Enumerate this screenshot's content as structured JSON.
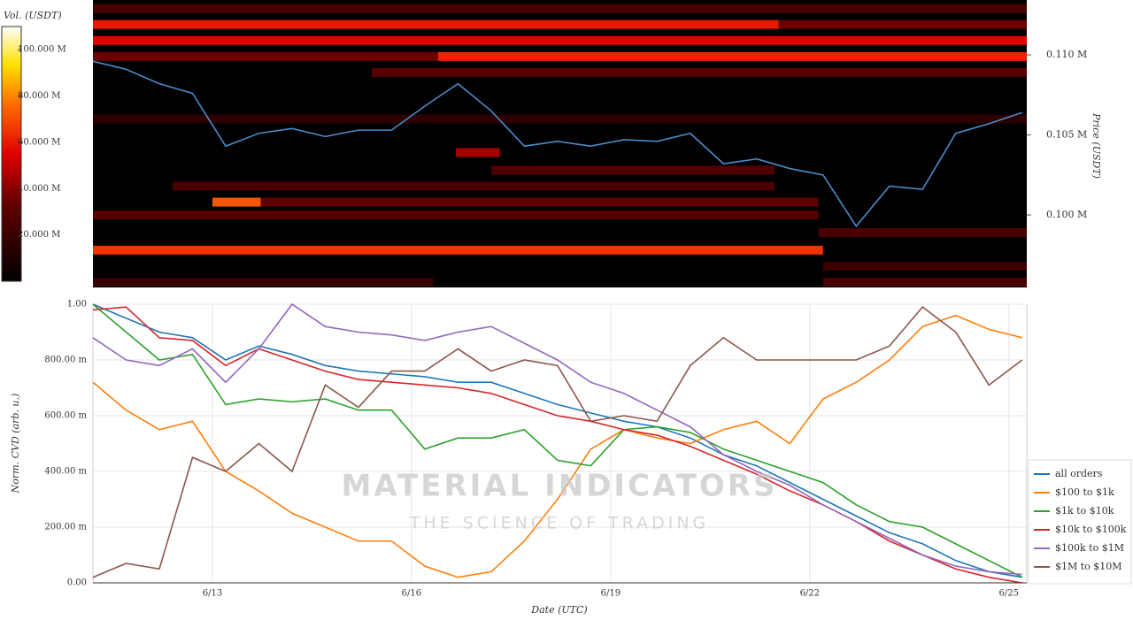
{
  "chart_data": [
    {
      "type": "heatmap",
      "colorbar_title": "Vol. (USDT)",
      "clim": [
        0,
        110
      ],
      "cticks": [
        {
          "value": 20,
          "label": "20.000 M"
        },
        {
          "value": 40,
          "label": "40.000 M"
        },
        {
          "value": 60,
          "label": "60.000 M"
        },
        {
          "value": 80,
          "label": "80.000 M"
        },
        {
          "value": 100,
          "label": "100.000 M"
        }
      ],
      "y_label": "Price (USDT)",
      "ylim": [
        0.09547,
        0.11343
      ],
      "yticks": [
        {
          "value": 0.1,
          "label": "0.100 M"
        },
        {
          "value": 0.105,
          "label": "0.105 M"
        },
        {
          "value": 0.11,
          "label": "0.110 M"
        }
      ],
      "xlim": [
        11.2,
        25.27
      ],
      "bands": [
        {
          "price": 0.1129,
          "start": 11.2,
          "end": 25.27,
          "volume": 25
        },
        {
          "price": 0.1119,
          "start": 11.2,
          "end": 21.53,
          "volume": 60
        },
        {
          "price": 0.1119,
          "start": 21.53,
          "end": 25.27,
          "volume": 35
        },
        {
          "price": 0.1109,
          "start": 11.2,
          "end": 25.27,
          "volume": 55
        },
        {
          "price": 0.1099,
          "start": 11.2,
          "end": 16.4,
          "volume": 35
        },
        {
          "price": 0.1099,
          "start": 16.4,
          "end": 25.27,
          "volume": 62
        },
        {
          "price": 0.1089,
          "start": 15.4,
          "end": 25.27,
          "volume": 30
        },
        {
          "price": 0.106,
          "start": 11.2,
          "end": 25.27,
          "volume": 15
        },
        {
          "price": 0.1039,
          "start": 16.67,
          "end": 17.33,
          "volume": 45
        },
        {
          "price": 0.1028,
          "start": 17.2,
          "end": 21.47,
          "volume": 28
        },
        {
          "price": 0.1018,
          "start": 12.4,
          "end": 21.47,
          "volume": 25
        },
        {
          "price": 0.1008,
          "start": 13.0,
          "end": 13.73,
          "volume": 72
        },
        {
          "price": 0.1008,
          "start": 13.73,
          "end": 22.13,
          "volume": 32
        },
        {
          "price": 0.1,
          "start": 11.2,
          "end": 22.13,
          "volume": 30
        },
        {
          "price": 0.0989,
          "start": 22.13,
          "end": 25.27,
          "volume": 25
        },
        {
          "price": 0.0978,
          "start": 11.2,
          "end": 22.2,
          "volume": 65
        },
        {
          "price": 0.0968,
          "start": 22.2,
          "end": 25.27,
          "volume": 20
        },
        {
          "price": 0.0958,
          "start": 11.2,
          "end": 16.33,
          "volume": 18
        },
        {
          "price": 0.0958,
          "start": 22.2,
          "end": 25.27,
          "volume": 25
        }
      ],
      "price_color": "#4a8ccb",
      "x": [
        11.2,
        11.7,
        12.2,
        12.7,
        13.2,
        13.7,
        14.2,
        14.7,
        15.2,
        15.7,
        16.2,
        16.7,
        17.2,
        17.7,
        18.2,
        18.7,
        19.2,
        19.7,
        20.2,
        20.7,
        21.2,
        21.7,
        22.2,
        22.7,
        23.2,
        23.7,
        24.2,
        24.7,
        25.2
      ],
      "price": [
        0.1096,
        0.1091,
        0.1082,
        0.1076,
        0.1043,
        0.1051,
        0.1054,
        0.1049,
        0.1053,
        0.1053,
        0.1068,
        0.1082,
        0.1065,
        0.1043,
        0.1046,
        0.1043,
        0.1047,
        0.1046,
        0.1051,
        0.1032,
        0.1035,
        0.1029,
        0.1025,
        0.0993,
        0.1018,
        0.1016,
        0.1051,
        0.1057,
        0.1064
      ]
    },
    {
      "type": "line",
      "watermark": "MATERIAL INDICATORS",
      "watermark_subtitle": "THE SCIENCE OF TRADING",
      "x_label": "Date (UTC)",
      "y_label": "Norm. CVD (arb. u.)",
      "xlim": [
        11.2,
        25.27
      ],
      "xticks": [
        {
          "value": 13,
          "label": "6/13"
        },
        {
          "value": 16,
          "label": "6/16"
        },
        {
          "value": 19,
          "label": "6/19"
        },
        {
          "value": 22,
          "label": "6/22"
        },
        {
          "value": 25,
          "label": "6/25"
        }
      ],
      "ylim": [
        0,
        1
      ],
      "yticks": [
        {
          "value": 0,
          "label": "0.00"
        },
        {
          "value": 0.2,
          "label": "200.00 m"
        },
        {
          "value": 0.4,
          "label": "400.00 m"
        },
        {
          "value": 0.6,
          "label": "600.00 m"
        },
        {
          "value": 0.8,
          "label": "800.00 m"
        },
        {
          "value": 1,
          "label": "1.00"
        }
      ],
      "grid": true,
      "legend": "right",
      "x": [
        11.2,
        11.7,
        12.2,
        12.7,
        13.2,
        13.7,
        14.2,
        14.7,
        15.2,
        15.7,
        16.2,
        16.7,
        17.2,
        17.7,
        18.2,
        18.7,
        19.2,
        19.7,
        20.2,
        20.7,
        21.2,
        21.7,
        22.2,
        22.7,
        23.2,
        23.7,
        24.2,
        24.7,
        25.2
      ],
      "series": [
        {
          "name": "all orders",
          "color": "#1f77b4",
          "values": [
            1.0,
            0.95,
            0.9,
            0.88,
            0.8,
            0.85,
            0.82,
            0.78,
            0.76,
            0.75,
            0.74,
            0.72,
            0.72,
            0.68,
            0.64,
            0.61,
            0.58,
            0.56,
            0.52,
            0.46,
            0.42,
            0.36,
            0.3,
            0.24,
            0.18,
            0.14,
            0.08,
            0.04,
            0.02
          ]
        },
        {
          "name": "$100 to $1k",
          "color": "#ff7f0e",
          "values": [
            0.72,
            0.62,
            0.55,
            0.58,
            0.4,
            0.33,
            0.25,
            0.2,
            0.15,
            0.15,
            0.06,
            0.02,
            0.04,
            0.15,
            0.3,
            0.48,
            0.55,
            0.52,
            0.5,
            0.55,
            0.58,
            0.5,
            0.66,
            0.72,
            0.8,
            0.92,
            0.96,
            0.91,
            0.88
          ]
        },
        {
          "name": "$1k to $10k",
          "color": "#2ca02c",
          "values": [
            1.0,
            0.9,
            0.8,
            0.82,
            0.64,
            0.66,
            0.65,
            0.66,
            0.62,
            0.62,
            0.48,
            0.52,
            0.52,
            0.55,
            0.44,
            0.42,
            0.55,
            0.56,
            0.54,
            0.48,
            0.44,
            0.4,
            0.36,
            0.28,
            0.22,
            0.2,
            0.14,
            0.08,
            0.02
          ]
        },
        {
          "name": "$10k to $100k",
          "color": "#d62728",
          "values": [
            0.98,
            0.99,
            0.88,
            0.87,
            0.78,
            0.84,
            0.8,
            0.76,
            0.73,
            0.72,
            0.71,
            0.7,
            0.68,
            0.64,
            0.6,
            0.58,
            0.55,
            0.53,
            0.49,
            0.44,
            0.39,
            0.33,
            0.28,
            0.22,
            0.15,
            0.1,
            0.05,
            0.02,
            0.0
          ]
        },
        {
          "name": "$100k to $1M",
          "color": "#9467bd",
          "values": [
            0.88,
            0.8,
            0.78,
            0.84,
            0.72,
            0.84,
            1.0,
            0.92,
            0.9,
            0.89,
            0.87,
            0.9,
            0.92,
            0.86,
            0.8,
            0.72,
            0.68,
            0.62,
            0.56,
            0.46,
            0.4,
            0.35,
            0.28,
            0.22,
            0.16,
            0.1,
            0.06,
            0.04,
            0.03
          ]
        },
        {
          "name": "$1M to $10M",
          "color": "#8c564b",
          "values": [
            0.02,
            0.07,
            0.05,
            0.45,
            0.4,
            0.5,
            0.4,
            0.71,
            0.63,
            0.76,
            0.76,
            0.84,
            0.76,
            0.8,
            0.78,
            0.58,
            0.6,
            0.58,
            0.78,
            0.88,
            0.8,
            0.8,
            0.8,
            0.8,
            0.85,
            0.99,
            0.9,
            0.71,
            0.8
          ]
        }
      ]
    }
  ]
}
